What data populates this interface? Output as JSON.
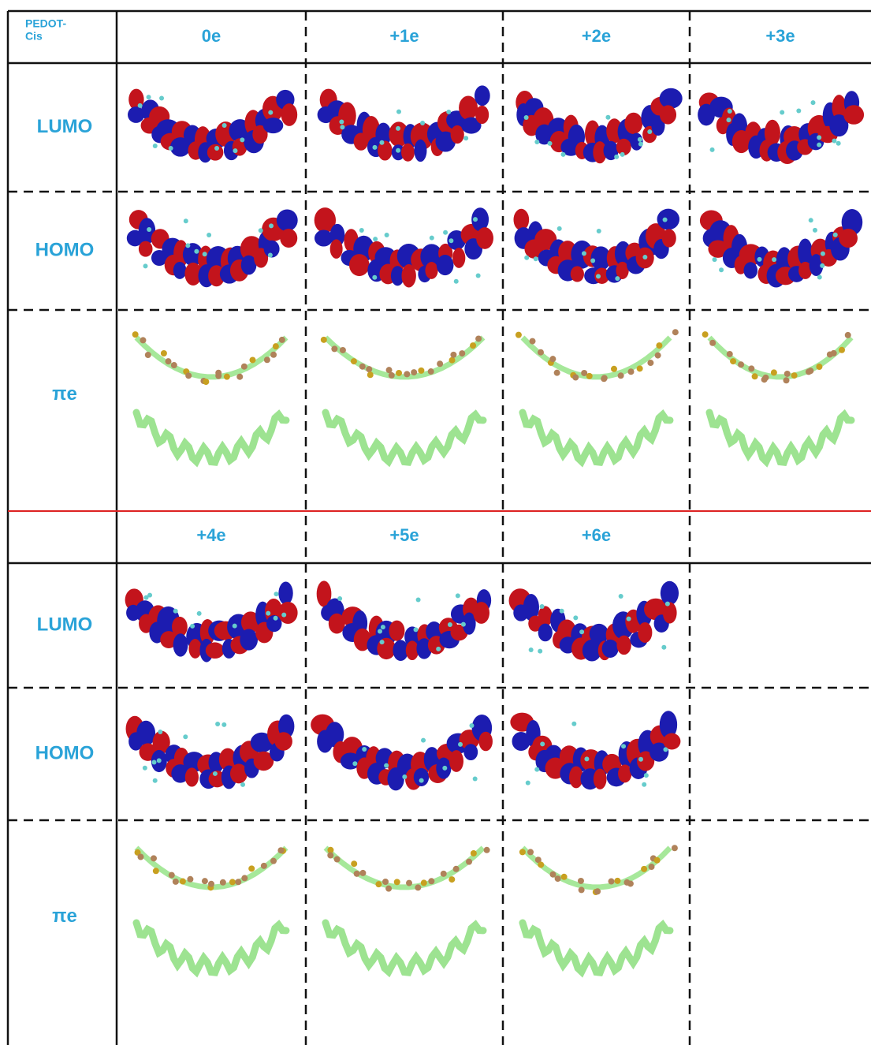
{
  "table": {
    "corner": "PEDOT-Cis",
    "sections": [
      {
        "headers": [
          "0e",
          "+1e",
          "+2e",
          "+3e"
        ],
        "rows": [
          "LUMO",
          "HOMO",
          "πe"
        ]
      },
      {
        "headers": [
          "+4e",
          "+5e",
          "+6e"
        ],
        "rows": [
          "LUMO",
          "HOMO",
          "πe"
        ]
      }
    ]
  }
}
